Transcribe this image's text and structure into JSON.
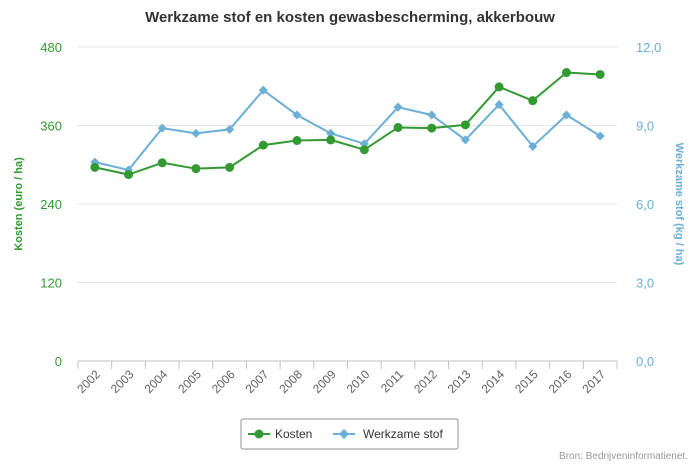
{
  "chart_data": {
    "type": "line",
    "title": "Werkzame stof en kosten gewasbescherming, akkerbouw",
    "categories": [
      "2002",
      "2003",
      "2004",
      "2005",
      "2006",
      "2007",
      "2008",
      "2009",
      "2010",
      "2011",
      "2012",
      "2013",
      "2014",
      "2015",
      "2016",
      "2017"
    ],
    "series": [
      {
        "name": "Kosten",
        "axis": "left",
        "color": "#339933",
        "marker": "circle",
        "values": [
          296,
          285,
          303,
          294,
          296,
          330,
          337,
          338,
          323,
          357,
          356,
          361,
          419,
          398,
          441,
          438
        ]
      },
      {
        "name": "Werkzame stof",
        "axis": "right",
        "color": "#6baed6",
        "marker": "diamond",
        "values": [
          7.6,
          7.3,
          8.9,
          8.7,
          8.85,
          10.35,
          9.4,
          8.7,
          8.3,
          9.7,
          9.4,
          8.45,
          9.8,
          8.2,
          9.4,
          8.6
        ]
      }
    ],
    "y_left": {
      "label": "Kosten (euro / ha)",
      "ticks": [
        "0",
        "120",
        "240",
        "360",
        "480"
      ],
      "range": [
        0,
        480
      ],
      "color": "#339933"
    },
    "y_right": {
      "label": "Werkzame stof (kg / ha)",
      "ticks": [
        "0,0",
        "3,0",
        "6,0",
        "9,0",
        "12,0"
      ],
      "range": [
        0,
        12
      ],
      "color": "#6baed6"
    },
    "grid": true,
    "legend_position": "bottom-center",
    "source": "Bron: Bedrijveninformatienet."
  }
}
